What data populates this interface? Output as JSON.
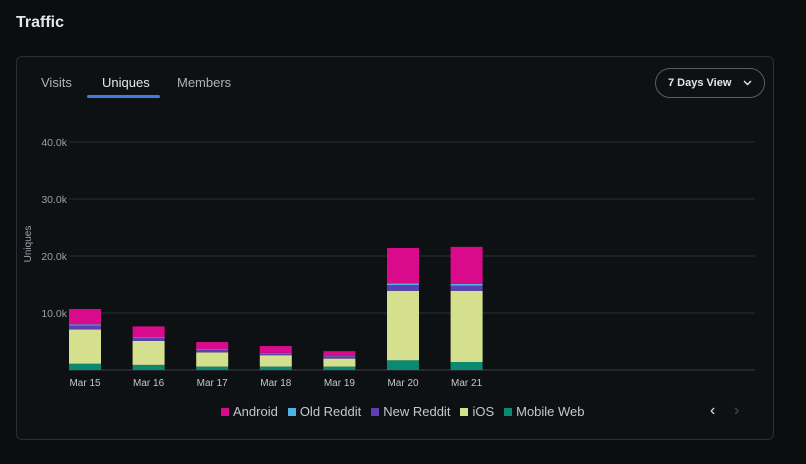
{
  "page": {
    "title": "Traffic"
  },
  "tabs": [
    {
      "label": "Visits"
    },
    {
      "label": "Uniques"
    },
    {
      "label": "Members"
    }
  ],
  "view_select": {
    "value": "7 Days View"
  },
  "pager": {
    "prev": "‹",
    "next": "›"
  },
  "colors": {
    "Android": "#d90b8c",
    "Old Reddit": "#4db2e6",
    "New Reddit": "#5b3fb5",
    "iOS": "#d5e08f",
    "Mobile Web": "#0b8a72"
  },
  "chart_data": {
    "type": "bar",
    "stacked": true,
    "ylabel": "Uniques",
    "ylim": [
      0,
      40000
    ],
    "yticks": [
      "40.0k",
      "30.0k",
      "20.0k",
      "10.0k"
    ],
    "ytick_values": [
      40000,
      30000,
      20000,
      10000
    ],
    "categories": [
      "Mar 15",
      "Mar 16",
      "Mar 17",
      "Mar 18",
      "Mar 19",
      "Mar 20",
      "Mar 21"
    ],
    "series": [
      {
        "name": "Mobile Web",
        "values": [
          1100,
          900,
          600,
          600,
          600,
          1700,
          1400
        ]
      },
      {
        "name": "iOS",
        "values": [
          6000,
          4200,
          2500,
          2000,
          1400,
          12200,
          12500
        ]
      },
      {
        "name": "New Reddit",
        "values": [
          700,
          500,
          400,
          300,
          300,
          1000,
          900
        ]
      },
      {
        "name": "Old Reddit",
        "values": [
          200,
          150,
          100,
          100,
          100,
          300,
          300
        ]
      },
      {
        "name": "Android",
        "values": [
          2700,
          1900,
          1300,
          1200,
          900,
          6200,
          6500
        ]
      }
    ],
    "legend": [
      "Android",
      "Old Reddit",
      "New Reddit",
      "iOS",
      "Mobile Web"
    ],
    "legend_position": "bottom"
  }
}
